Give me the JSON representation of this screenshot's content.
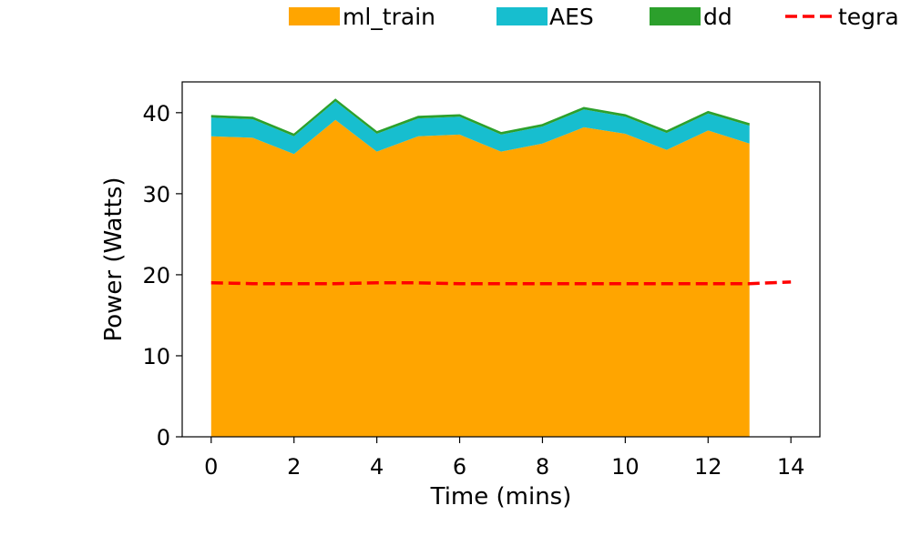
{
  "chart_data": {
    "type": "area",
    "xlabel": "Time (mins)",
    "ylabel": "Power (Watts)",
    "xlim": [
      -0.7,
      14.7
    ],
    "ylim": [
      0,
      43.8
    ],
    "xticks": [
      0,
      2,
      4,
      6,
      8,
      10,
      12,
      14
    ],
    "yticks": [
      0,
      10,
      20,
      30,
      40
    ],
    "grid": false,
    "legend_position": "top",
    "x": [
      0,
      1,
      2,
      3,
      4,
      5,
      6,
      7,
      8,
      9,
      10,
      11,
      12,
      13
    ],
    "series": [
      {
        "name": "ml_train",
        "kind": "stacked-area",
        "color": "#ffa500",
        "values": [
          37.1,
          36.9,
          34.9,
          39.1,
          35.2,
          37.1,
          37.3,
          35.2,
          36.2,
          38.2,
          37.4,
          35.4,
          37.8,
          36.2
        ]
      },
      {
        "name": "AES",
        "kind": "stacked-area",
        "color": "#17becf",
        "values": [
          2.3,
          2.3,
          2.2,
          2.3,
          2.2,
          2.2,
          2.2,
          2.1,
          2.1,
          2.2,
          2.1,
          2.1,
          2.1,
          2.2
        ]
      },
      {
        "name": "dd",
        "kind": "stacked-area",
        "color": "#2ca02c",
        "values": [
          0.2,
          0.2,
          0.2,
          0.2,
          0.2,
          0.2,
          0.2,
          0.2,
          0.2,
          0.2,
          0.2,
          0.2,
          0.2,
          0.2
        ]
      },
      {
        "name": "tegra",
        "kind": "dashed-line",
        "color": "#ff0000",
        "x": [
          0,
          1,
          2,
          3,
          4,
          5,
          6,
          7,
          8,
          9,
          10,
          11,
          12,
          13,
          14
        ],
        "values": [
          19.0,
          18.9,
          18.9,
          18.9,
          19.0,
          19.0,
          18.9,
          18.9,
          18.9,
          18.9,
          18.9,
          18.9,
          18.9,
          18.9,
          19.1
        ]
      }
    ]
  }
}
